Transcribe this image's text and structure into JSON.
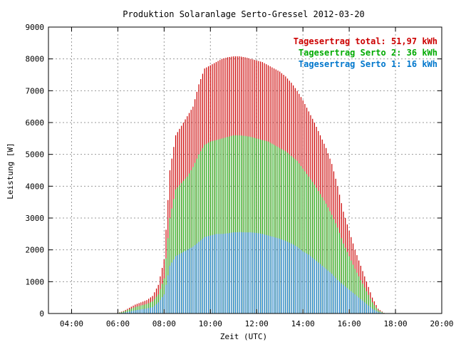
{
  "chart_data": {
    "type": "bar",
    "title": "Produktion Solaranlage Serto-Gressel 2012-03-20",
    "xlabel": "Zeit (UTC)",
    "ylabel": "Leistung [W]",
    "xlim": [
      3.0,
      20.0
    ],
    "ylim": [
      0,
      9000
    ],
    "x_ticks": [
      "04:00",
      "06:00",
      "08:00",
      "10:00",
      "12:00",
      "14:00",
      "16:00",
      "18:00",
      "20:00"
    ],
    "x_tick_values": [
      4,
      6,
      8,
      10,
      12,
      14,
      16,
      18,
      20
    ],
    "y_ticks": [
      0,
      1000,
      2000,
      3000,
      4000,
      5000,
      6000,
      7000,
      8000,
      9000
    ],
    "grid": true,
    "legend_position": "top-right",
    "legend": [
      {
        "label": "Tagesertrag total: 51,97 kWh",
        "color": "#cc0000"
      },
      {
        "label": "Tagesertrag Serto 2: 36 kWh",
        "color": "#00aa00"
      },
      {
        "label": "Tagesertrag Serto 1: 16 kWh",
        "color": "#0077cc"
      }
    ],
    "series_colors": {
      "total": "#cc0000",
      "serto2": "#22bb22",
      "serto1": "#2288dd"
    },
    "x_times": [
      6.0,
      6.25,
      6.5,
      6.75,
      7.0,
      7.25,
      7.5,
      7.75,
      8.0,
      8.25,
      8.5,
      8.75,
      9.0,
      9.25,
      9.5,
      9.75,
      10.0,
      10.25,
      10.5,
      10.75,
      11.0,
      11.25,
      11.5,
      11.75,
      12.0,
      12.25,
      12.5,
      12.75,
      13.0,
      13.25,
      13.5,
      13.75,
      14.0,
      14.25,
      14.5,
      14.75,
      15.0,
      15.25,
      15.5,
      15.75,
      16.0,
      16.25,
      16.5,
      16.75,
      17.0,
      17.25,
      17.5
    ],
    "total_values": [
      20,
      80,
      180,
      280,
      350,
      420,
      550,
      900,
      1700,
      4500,
      5600,
      5900,
      6200,
      6500,
      7200,
      7700,
      7800,
      7900,
      8000,
      8050,
      8080,
      8080,
      8050,
      8000,
      7950,
      7900,
      7800,
      7700,
      7600,
      7450,
      7250,
      7000,
      6700,
      6350,
      6000,
      5600,
      5200,
      4700,
      4000,
      3200,
      2600,
      2000,
      1500,
      1000,
      500,
      150,
      20
    ],
    "serto2_values": [
      15,
      60,
      130,
      200,
      250,
      300,
      380,
      600,
      1100,
      3000,
      3900,
      4100,
      4300,
      4600,
      5000,
      5300,
      5400,
      5450,
      5500,
      5550,
      5600,
      5600,
      5580,
      5550,
      5500,
      5450,
      5400,
      5300,
      5200,
      5100,
      4950,
      4800,
      4550,
      4300,
      4050,
      3750,
      3450,
      3100,
      2700,
      2200,
      1800,
      1400,
      1050,
      700,
      350,
      100,
      15
    ],
    "serto1_values": [
      5,
      25,
      60,
      100,
      130,
      160,
      200,
      350,
      600,
      1500,
      1800,
      1900,
      2000,
      2100,
      2250,
      2400,
      2450,
      2500,
      2500,
      2520,
      2550,
      2560,
      2550,
      2550,
      2530,
      2500,
      2450,
      2400,
      2350,
      2280,
      2200,
      2100,
      1950,
      1850,
      1700,
      1550,
      1400,
      1250,
      1050,
      900,
      750,
      600,
      450,
      300,
      150,
      50,
      5
    ]
  }
}
